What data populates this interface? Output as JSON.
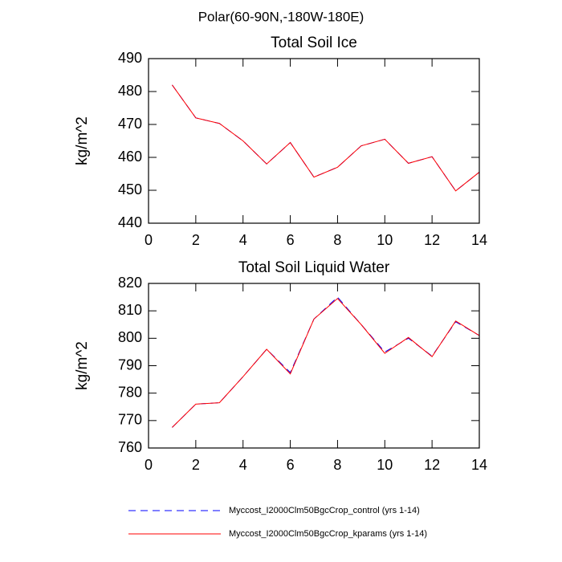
{
  "title": "Polar(60-90N,-180W-180E)",
  "chart_data": [
    {
      "type": "line",
      "title": "Total Soil Ice",
      "y_label": "kg/m^2",
      "x": [
        1,
        2,
        3,
        4,
        5,
        6,
        7,
        8,
        9,
        10,
        11,
        12,
        13,
        14
      ],
      "xlim": [
        0,
        14
      ],
      "xticks": [
        0,
        2,
        4,
        6,
        8,
        10,
        12,
        14
      ],
      "ylim": [
        440,
        490
      ],
      "yticks": [
        440,
        450,
        460,
        470,
        480,
        490
      ],
      "series": [
        {
          "name": "Myccost_I2000Clm50BgcCrop_control (yrs 1-14)",
          "color": "#0000ff",
          "line_style": "dashed",
          "values": [
            482,
            472,
            470.3,
            465,
            458,
            464.5,
            454,
            457,
            463.5,
            465.5,
            458.2,
            460.2,
            449.8,
            455.5
          ]
        },
        {
          "name": "Myccost_I2000Clm50BgcCrop_kparams (yrs 1-14)",
          "color": "#ff0000",
          "line_style": "solid",
          "values": [
            482,
            472,
            470.3,
            465,
            458,
            464.5,
            454,
            457,
            463.5,
            465.5,
            458.2,
            460.2,
            449.8,
            455.5
          ]
        }
      ]
    },
    {
      "type": "line",
      "title": "Total Soil Liquid Water",
      "y_label": "kg/m^2",
      "x": [
        1,
        2,
        3,
        4,
        5,
        6,
        7,
        8,
        9,
        10,
        11,
        12,
        13,
        14
      ],
      "xlim": [
        0,
        14
      ],
      "xticks": [
        0,
        2,
        4,
        6,
        8,
        10,
        12,
        14
      ],
      "ylim": [
        760,
        820
      ],
      "yticks": [
        760,
        770,
        780,
        790,
        800,
        810,
        820
      ],
      "series": [
        {
          "name": "Myccost_I2000Clm50BgcCrop_control (yrs 1-14)",
          "color": "#0000ff",
          "line_style": "dashed",
          "values": [
            767.5,
            776,
            776.5,
            786,
            796,
            787.5,
            807,
            815,
            805,
            795,
            800,
            793.5,
            806,
            801
          ]
        },
        {
          "name": "Myccost_I2000Clm50BgcCrop_kparams (yrs 1-14)",
          "color": "#ff0000",
          "line_style": "solid",
          "values": [
            767.5,
            776,
            776.5,
            786,
            796,
            787,
            807,
            814.5,
            805,
            794.5,
            800.3,
            793.3,
            806.3,
            801
          ]
        }
      ]
    }
  ]
}
